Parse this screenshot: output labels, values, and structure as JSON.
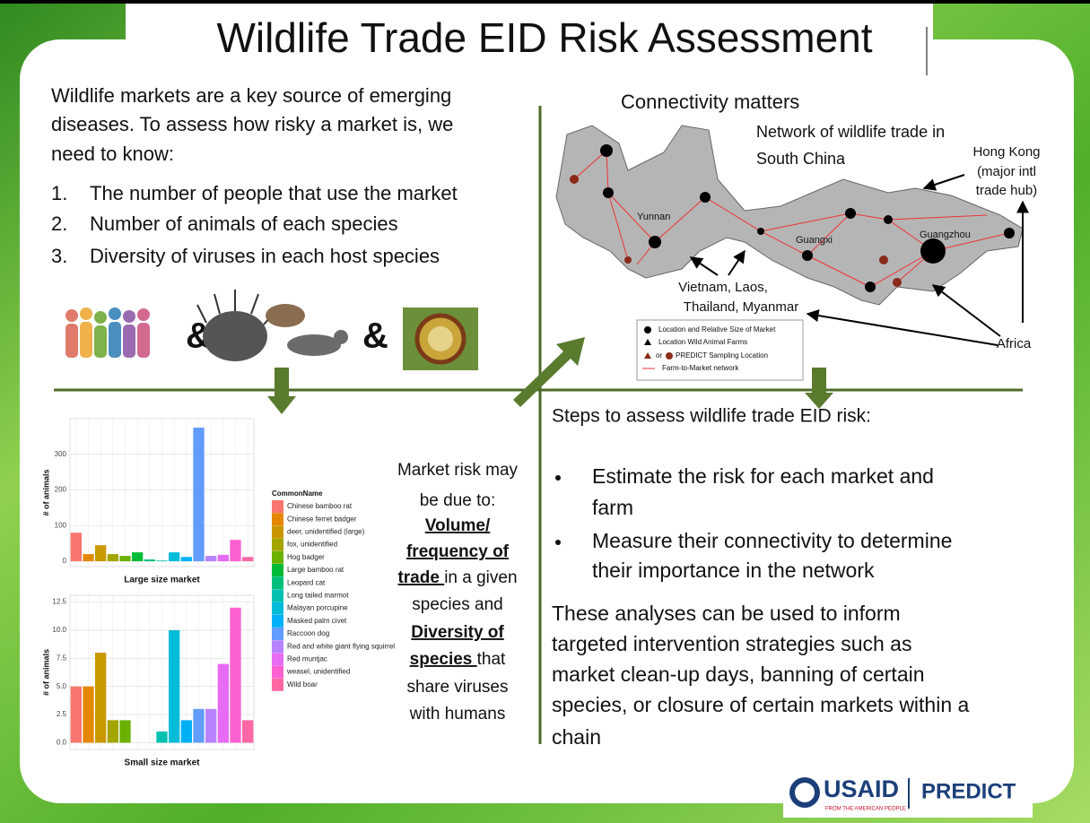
{
  "title": "Wildlife Trade EID Risk Assessment",
  "intro": {
    "lines": [
      "Wildlife markets are a key source of emerging",
      "diseases.  To assess how risky a market is, we",
      "need to know:"
    ],
    "items": [
      {
        "number": "1.",
        "text": "The number of people that use the market"
      },
      {
        "number": "2.",
        "text": "Number of animals of each species"
      },
      {
        "number": "3.",
        "text": "Diversity of viruses in each host species"
      }
    ]
  },
  "symbols": [
    "&",
    "&"
  ],
  "map": {
    "heading": "Connectivity matters",
    "subtitle": [
      "Network of wildlife trade in",
      "South China"
    ],
    "hong_kong": [
      "Hong Kong",
      "(major intl",
      "trade hub)"
    ],
    "regions": [
      "Yunnan",
      "Guangxi",
      "Guangzhou"
    ],
    "neighbors": [
      "Vietnam, Laos,",
      "Thailand, Myanmar"
    ],
    "africa": "Africa",
    "legend": [
      "Location and Relative Size of Market",
      "Location Wild Animal Farms",
      "or",
      "PREDICT Sampling Location",
      "Farm-to-Market network"
    ]
  },
  "market_risk": [
    [
      {
        "text": "Market risk may"
      }
    ],
    [
      {
        "text": "be due to:"
      }
    ],
    [
      {
        "text": "Volume/",
        "bold": true
      }
    ],
    [
      {
        "text": "frequency of",
        "bold": true
      }
    ],
    [
      {
        "text": "trade ",
        "bold": true
      },
      {
        "text": "in  a given"
      }
    ],
    [
      {
        "text": "species and"
      }
    ],
    [
      {
        "text": "Diversity of",
        "bold": true
      }
    ],
    [
      {
        "text": "species ",
        "bold": true
      },
      {
        "text": "that"
      }
    ],
    [
      {
        "text": "share viruses"
      }
    ],
    [
      {
        "text": "with humans"
      }
    ]
  ],
  "steps": {
    "heading": "Steps to assess wildlife trade EID risk:",
    "bullets": [
      [
        "Estimate the risk for each market and",
        "farm"
      ],
      [
        "Measure their connectivity to determine",
        "their importance in the network"
      ]
    ]
  },
  "conclusion": [
    "These analyses can be used to inform",
    "targeted intervention strategies such as",
    "market clean-up days, banning of certain",
    "species, or closure of certain markets within a",
    "chain"
  ],
  "logo": {
    "usaid": "USAID",
    "tagline": "FROM THE AMERICAN PEOPLE",
    "predict": "PREDICT"
  },
  "chart_data": [
    {
      "type": "bar",
      "title": "Large size market",
      "y_label": "# of animals",
      "legend_title": "CommonName",
      "categories": [
        "Chinese bamboo rat",
        "Chinese ferret badger",
        "deer, unidentified (large)",
        "fox, unidentified",
        "Hog badger",
        "Large bamboo rat",
        "Leopard cat",
        "Long tailed marmot",
        "Malayan porcupine",
        "Masked palm civet",
        "Raccoon dog",
        "Red and white giant flying squirrel",
        "Red muntjac",
        "weasel, unidentified",
        "Wild boar"
      ],
      "colors": [
        "#F8766D",
        "#E58700",
        "#C99800",
        "#A3A500",
        "#6BB100",
        "#00BA38",
        "#00BF7D",
        "#00C0AF",
        "#00BCD8",
        "#00B0F6",
        "#619CFF",
        "#B983FF",
        "#E76BF3",
        "#FD61D1",
        "#FF67A4"
      ],
      "values": [
        80,
        20,
        45,
        20,
        15,
        25,
        5,
        2,
        25,
        12,
        375,
        15,
        18,
        60,
        12
      ],
      "ylim": [
        -15,
        400
      ],
      "yticks": [
        0,
        100,
        200,
        300
      ],
      "grid": true
    },
    {
      "type": "bar",
      "title": "Small size market",
      "y_label": "# of animals",
      "values": [
        5,
        5,
        8,
        2,
        2,
        null,
        null,
        1,
        10,
        2,
        3,
        3,
        7,
        12,
        2
      ],
      "ylim": [
        -0.6,
        13.1
      ],
      "yticks": [
        {
          "value": 0,
          "label": "0.0"
        },
        2.5,
        {
          "value": 5,
          "label": "5.0"
        },
        7.5,
        {
          "value": 10,
          "label": "10.0"
        },
        12.5
      ],
      "grid": true
    }
  ]
}
